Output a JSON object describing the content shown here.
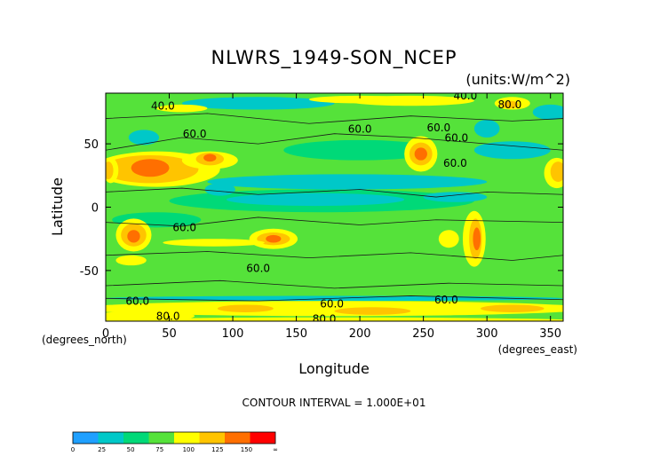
{
  "chart_data": {
    "type": "contour",
    "title": "NLWRS_1949-SON_NCEP",
    "units": "(units:W/m^2)",
    "xlabel": "Longitude",
    "ylabel": "Latitude",
    "x_unit_label": "(degrees_east)",
    "y_unit_label": "(degrees_north)",
    "xlim": [
      0,
      360
    ],
    "ylim": [
      -90,
      90
    ],
    "xticks": [
      0,
      50,
      100,
      150,
      200,
      250,
      300,
      350
    ],
    "yticks": [
      -50,
      0,
      50
    ],
    "contour_interval_text": "CONTOUR INTERVAL = 1.000E+01",
    "contour_labels": [
      {
        "text": "40.0",
        "lon": 45,
        "lat": 77
      },
      {
        "text": "40.0",
        "lon": 283,
        "lat": 85
      },
      {
        "text": "60.0",
        "lon": 70,
        "lat": 55
      },
      {
        "text": "60.0",
        "lon": 200,
        "lat": 59
      },
      {
        "text": "60.0",
        "lon": 262,
        "lat": 60
      },
      {
        "text": "60.0",
        "lon": 275,
        "lat": 32
      },
      {
        "text": "60.0",
        "lon": 276,
        "lat": 52
      },
      {
        "text": "60.0",
        "lon": 62,
        "lat": -19
      },
      {
        "text": "60.0",
        "lon": 120,
        "lat": -51
      },
      {
        "text": "60.0",
        "lon": 25,
        "lat": -77
      },
      {
        "text": "60.0",
        "lon": 178,
        "lat": -79
      },
      {
        "text": "60.0",
        "lon": 268,
        "lat": -76
      },
      {
        "text": "80.0",
        "lon": 49,
        "lat": -89
      },
      {
        "text": "80.0",
        "lon": 172,
        "lat": -91
      },
      {
        "text": "80.0",
        "lon": 318,
        "lat": 78
      }
    ],
    "colorbar": {
      "levels": [
        "0",
        "25",
        "50",
        "75",
        "100",
        "125",
        "150",
        "∞"
      ],
      "colors": [
        "#1fa0ff",
        "#00c8c8",
        "#00d978",
        "#55e23a",
        "#ffff00",
        "#ffc400",
        "#ff6f00",
        "#ff0000"
      ]
    }
  }
}
